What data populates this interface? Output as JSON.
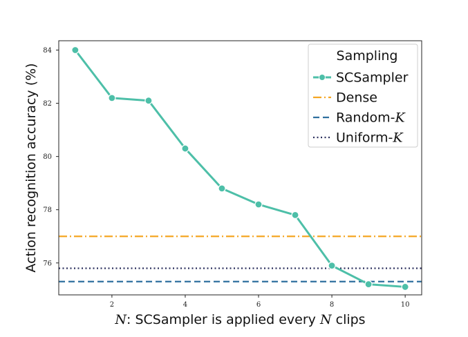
{
  "chart_data": {
    "type": "line",
    "xlabel_var": "N",
    "xlabel_rest": ": SCSampler is applied every ",
    "xlabel_var2": "N",
    "xlabel_end": " clips",
    "ylabel": "Action recognition accuracy (%)",
    "xlim": [
      0.55,
      10.45
    ],
    "ylim": [
      74.8,
      84.35
    ],
    "xticks": [
      2,
      4,
      6,
      8,
      10
    ],
    "yticks": [
      76,
      78,
      80,
      82,
      84
    ],
    "grid": false,
    "legend": {
      "title": "Sampling",
      "placement": "top-right",
      "entries": [
        {
          "label": "SCSampler",
          "var": ""
        },
        {
          "label": "Dense",
          "var": ""
        },
        {
          "label": "Random-",
          "var": "K"
        },
        {
          "label": "Uniform-",
          "var": "K"
        }
      ]
    },
    "series": [
      {
        "name": "SCSampler",
        "color": "#4dbfa8",
        "style": "solid-marker",
        "x": [
          1,
          2,
          3,
          4,
          5,
          6,
          7,
          8,
          9,
          10
        ],
        "y": [
          84.0,
          82.2,
          82.1,
          80.3,
          78.8,
          78.2,
          77.8,
          75.9,
          75.2,
          75.1
        ]
      },
      {
        "name": "Dense",
        "color": "#f5a623",
        "style": "dashdot",
        "y": 77.0
      },
      {
        "name": "Random-K",
        "color": "#2e6f9e",
        "style": "dashed",
        "y": 75.3
      },
      {
        "name": "Uniform-K",
        "color": "#2b2f5c",
        "style": "dotted",
        "y": 75.8
      }
    ]
  }
}
